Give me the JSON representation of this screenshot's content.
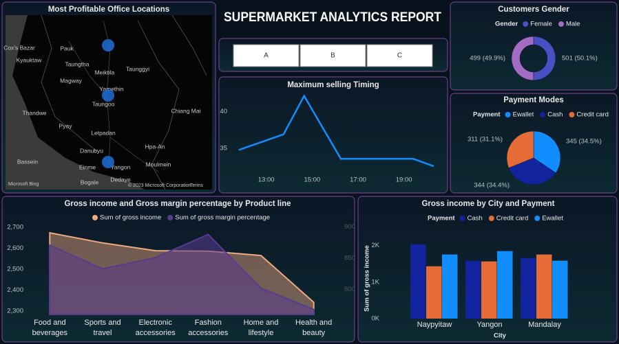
{
  "title": "SUPERMARKET ANALYTICS REPORT",
  "slicer": [
    "A",
    "B",
    "C"
  ],
  "map": {
    "title": "Most Profitable Office Locations",
    "places": [
      "Cox's Bazar",
      "Pauk",
      "Kyauktaw",
      "Taungtha",
      "Magway",
      "Meiktila",
      "Taunggyi",
      "Yamethin",
      "Taungoo",
      "Thandwe",
      "Pyay",
      "Letpadan",
      "Bassein",
      "Danubyu",
      "Einme",
      "Yangon",
      "Bogale",
      "Hpa-An",
      "Moulmein",
      "Dedaye",
      "Chiang Mai"
    ],
    "logo": "Microsoft Bing",
    "attribution": "© 2023 Microsoft Corporation",
    "terms": "Terms"
  },
  "chart_data": [
    {
      "type": "line",
      "title": "Maximum selling Timing",
      "x": [
        11.8,
        13.75,
        14.65,
        16.25,
        19.4,
        20.3
      ],
      "values": [
        34.8,
        36.9,
        42.1,
        33.6,
        33.6,
        32.6
      ],
      "color": "#118dff",
      "xlim": [
        11.6,
        20.6
      ],
      "xticks": [
        {
          "value": 13,
          "label": "13:00"
        },
        {
          "value": 15,
          "label": "15:00"
        },
        {
          "value": 17,
          "label": "17:00"
        },
        {
          "value": 19,
          "label": "19:00"
        }
      ],
      "ylim": [
        31.4,
        43
      ],
      "yticks": [
        35,
        40
      ]
    },
    {
      "type": "donut",
      "title": "Customers Gender",
      "legend_title": "Gender",
      "categories": [
        "Female",
        "Male"
      ],
      "values": [
        501,
        499
      ],
      "value_labels": [
        "501 (50.1%)",
        "499 (49.9%)"
      ],
      "colors": [
        "#4a4fc4",
        "#a36bc4"
      ]
    },
    {
      "type": "pie",
      "title": "Payment Modes",
      "legend_title": "Payment",
      "categories": [
        "Ewallet",
        "Cash",
        "Credit card"
      ],
      "values": [
        345,
        344,
        311
      ],
      "value_labels": [
        "345 (34.5%)",
        "344 (34.4%)",
        "311 (31.1%)"
      ],
      "colors": [
        "#118dff",
        "#12239e",
        "#e66c37"
      ]
    },
    {
      "type": "area",
      "title": "Gross income and Gross margin percentage by Product line",
      "categories": [
        "Food and beverages",
        "Sports and travel",
        "Electronic accessories",
        "Fashion accessories",
        "Home and lifestyle",
        "Health and beauty"
      ],
      "series": [
        {
          "name": "Sum of gross income",
          "color": "#f0a880",
          "values": [
            2673,
            2625,
            2588,
            2586,
            2565,
            2342
          ]
        },
        {
          "name": "Sum of gross margin percentage",
          "color": "#5a3a8e",
          "axis": "y2",
          "values": [
            871,
            833,
            851,
            888,
            802,
            768
          ]
        }
      ],
      "ylim": [
        2284,
        2716
      ],
      "yticks": [
        {
          "value": 2300,
          "label": "2,300"
        },
        {
          "value": 2400,
          "label": "2,400"
        },
        {
          "value": 2500,
          "label": "2,500"
        },
        {
          "value": 2600,
          "label": "2,600"
        },
        {
          "value": 2700,
          "label": "2,700"
        }
      ],
      "y2lim": [
        760,
        905
      ],
      "y2ticks": [
        800,
        850,
        900
      ]
    },
    {
      "type": "bar",
      "title": "Gross income by City and Payment",
      "legend_title": "Payment",
      "x_label": "City",
      "y_label": "Sum of gross income",
      "categories": [
        "Naypyitaw",
        "Yangon",
        "Mandalay"
      ],
      "series": [
        {
          "name": "Cash",
          "color": "#12239e",
          "values": [
            2038,
            1585,
            1660
          ]
        },
        {
          "name": "Credit card",
          "color": "#e66c37",
          "values": [
            1434,
            1566,
            1755
          ]
        },
        {
          "name": "Ewallet",
          "color": "#118dff",
          "values": [
            1755,
            1849,
            1585
          ]
        }
      ],
      "ylim": [
        0,
        2200
      ],
      "yticks": [
        {
          "value": 0,
          "label": "0K"
        },
        {
          "value": 1000,
          "label": "1K"
        },
        {
          "value": 2000,
          "label": "2K"
        }
      ]
    }
  ]
}
